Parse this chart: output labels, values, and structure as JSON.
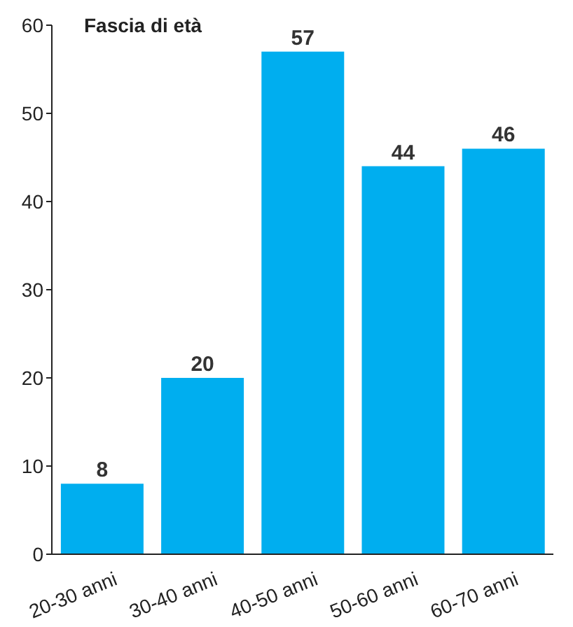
{
  "chart_data": {
    "type": "bar",
    "title": "Fascia di età",
    "categories": [
      "20-30 anni",
      "30-40 anni",
      "40-50 anni",
      "50-60 anni",
      "60-70 anni"
    ],
    "values": [
      8,
      20,
      57,
      44,
      46
    ],
    "color": "#00aeef",
    "ylim": [
      0,
      60
    ],
    "yticks": [
      0,
      10,
      20,
      30,
      40,
      50,
      60
    ],
    "grid": false,
    "data_labels": true
  }
}
